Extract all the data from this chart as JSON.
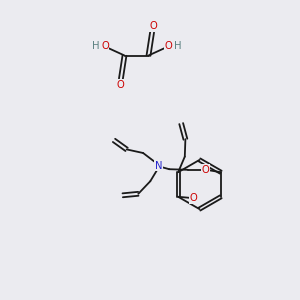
{
  "bg_color": "#ebebf0",
  "bond_color": "#1a1a1a",
  "O_color": "#cc0000",
  "N_color": "#2222cc",
  "H_color": "#5a8080",
  "lw": 1.3,
  "fs": 7.2,
  "xlim": [
    0,
    10
  ],
  "ylim": [
    0,
    10
  ]
}
